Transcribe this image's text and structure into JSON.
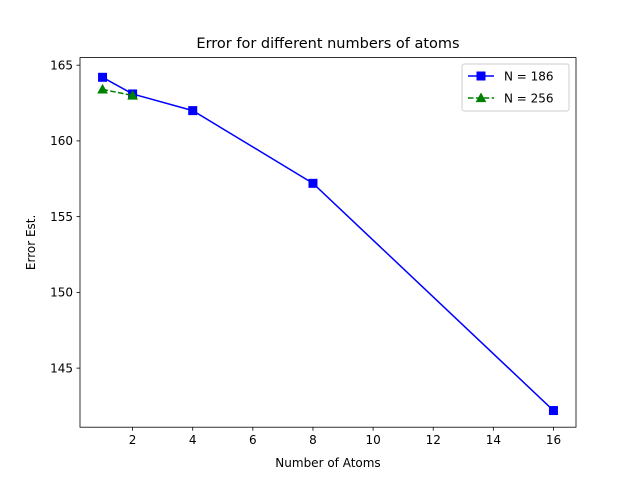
{
  "chart_data": {
    "type": "line",
    "title": "Error for different numbers of atoms",
    "xlabel": "Number of Atoms",
    "ylabel": "Error Est.",
    "xlim": [
      0.25,
      16.75
    ],
    "ylim": [
      141.1,
      165.5
    ],
    "xticks": [
      2,
      4,
      6,
      8,
      10,
      12,
      14,
      16
    ],
    "yticks": [
      145,
      150,
      155,
      160,
      165
    ],
    "grid": false,
    "legend_position": "top-right",
    "series": [
      {
        "name": "N = 186",
        "color": "#0000ff",
        "marker": "square",
        "linestyle": "solid",
        "x": [
          1,
          2,
          4,
          8,
          16
        ],
        "y": [
          164.2,
          163.1,
          162.0,
          157.2,
          142.2
        ]
      },
      {
        "name": "N = 256",
        "color": "#008000",
        "marker": "triangle",
        "linestyle": "dashed",
        "x": [
          1,
          2
        ],
        "y": [
          163.4,
          163.0
        ]
      }
    ]
  }
}
